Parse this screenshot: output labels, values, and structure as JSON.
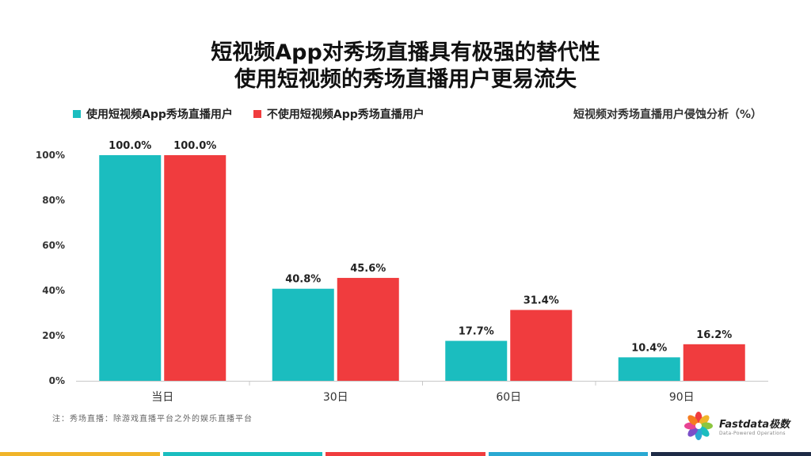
{
  "header": {
    "title_line1": "短视频App对秀场直播具有极强的替代性",
    "title_line2": "使用短视频的秀场直播用户更易流失"
  },
  "legend": {
    "items": [
      {
        "label": "使用短视频App秀场直播用户",
        "color": "#1bbdbf"
      },
      {
        "label": "不使用短视频App秀场直播用户",
        "color": "#f03c3e"
      }
    ]
  },
  "chart_title": "短视频对秀场直播用户侵蚀分析（%）",
  "chart_data": {
    "type": "bar",
    "categories": [
      "当日",
      "30日",
      "60日",
      "90日"
    ],
    "series": [
      {
        "name": "使用短视频App秀场直播用户",
        "values": [
          100.0,
          40.8,
          17.7,
          10.4
        ],
        "color": "#1bbdbf"
      },
      {
        "name": "不使用短视频App秀场直播用户",
        "values": [
          100.0,
          45.6,
          31.4,
          16.2
        ],
        "color": "#f03c3e"
      }
    ],
    "data_labels": [
      [
        "100.0%",
        "40.8%",
        "17.7%",
        "10.4%"
      ],
      [
        "100.0%",
        "45.6%",
        "31.4%",
        "16.2%"
      ]
    ],
    "y_ticks": [
      0,
      20,
      40,
      60,
      80,
      100
    ],
    "y_tick_labels": [
      "0%",
      "20%",
      "40%",
      "60%",
      "80%",
      "100%"
    ],
    "ylim": [
      0,
      100
    ],
    "grid": false,
    "legend_position": "top-left"
  },
  "footnote": "注：秀场直播：除游戏直播平台之外的娱乐直播平台",
  "logo": {
    "name": "Fastdata极数",
    "tagline": "Data-Powered Operations"
  },
  "bottom_bar_colors": [
    "#f0b429",
    "#1bbdbf",
    "#f03c3e",
    "#2aa9d2",
    "#1e2b46"
  ]
}
